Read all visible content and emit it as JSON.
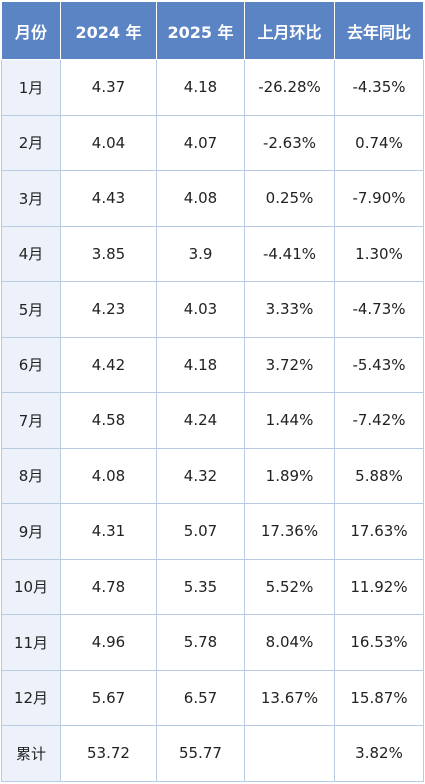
{
  "table": {
    "headers": [
      "月份",
      "2024 年",
      "2025 年",
      "上月环比",
      "去年同比"
    ],
    "rows": [
      [
        "1月",
        "4.37",
        "4.18",
        "-26.28%",
        "-4.35%"
      ],
      [
        "2月",
        "4.04",
        "4.07",
        "-2.63%",
        "0.74%"
      ],
      [
        "3月",
        "4.43",
        "4.08",
        "0.25%",
        "-7.90%"
      ],
      [
        "4月",
        "3.85",
        "3.9",
        "-4.41%",
        "1.30%"
      ],
      [
        "5月",
        "4.23",
        "4.03",
        "3.33%",
        "-4.73%"
      ],
      [
        "6月",
        "4.42",
        "4.18",
        "3.72%",
        "-5.43%"
      ],
      [
        "7月",
        "4.58",
        "4.24",
        "1.44%",
        "-7.42%"
      ],
      [
        "8月",
        "4.08",
        "4.32",
        "1.89%",
        "5.88%"
      ],
      [
        "9月",
        "4.31",
        "5.07",
        "17.36%",
        "17.63%"
      ],
      [
        "10月",
        "4.78",
        "5.35",
        "5.52%",
        "11.92%"
      ],
      [
        "11月",
        "4.96",
        "5.78",
        "8.04%",
        "16.53%"
      ],
      [
        "12月",
        "5.67",
        "6.57",
        "13.67%",
        "15.87%"
      ],
      [
        "累计",
        "53.72",
        "55.77",
        "",
        "3.82%"
      ]
    ]
  },
  "colors": {
    "header_bg": "#5b84c5",
    "header_text": "#ffffff",
    "first_column_bg": "#edf2fa",
    "grid": "#b8cbe2"
  }
}
